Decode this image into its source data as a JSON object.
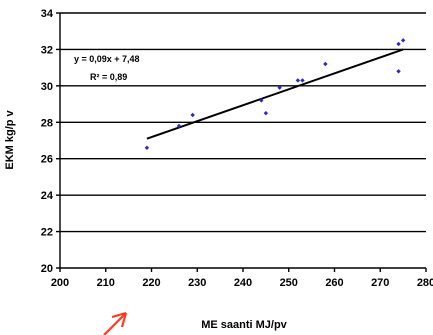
{
  "chart_data": {
    "type": "scatter",
    "xlabel": "ME saanti MJ/pv",
    "ylabel": "EKM kg/p v",
    "xlim": [
      200,
      280
    ],
    "ylim": [
      20,
      34
    ],
    "x_ticks": [
      "200",
      "210",
      "220",
      "230",
      "240",
      "250",
      "260",
      "270",
      "280"
    ],
    "y_ticks": [
      "20",
      "22",
      "24",
      "26",
      "28",
      "30",
      "32",
      "34"
    ],
    "grid": "horizontal",
    "points": [
      {
        "x": 219,
        "y": 26.6
      },
      {
        "x": 226,
        "y": 27.8
      },
      {
        "x": 229,
        "y": 28.4
      },
      {
        "x": 244,
        "y": 29.2
      },
      {
        "x": 245,
        "y": 28.5
      },
      {
        "x": 248,
        "y": 29.9
      },
      {
        "x": 252,
        "y": 30.3
      },
      {
        "x": 253,
        "y": 30.3
      },
      {
        "x": 258,
        "y": 31.2
      },
      {
        "x": 274,
        "y": 30.8
      },
      {
        "x": 274,
        "y": 32.3
      },
      {
        "x": 275,
        "y": 32.5
      }
    ],
    "trendline": {
      "x": [
        219,
        275
      ],
      "y": [
        27.1,
        32.0
      ]
    },
    "equation": "y = 0,09x + 7,48",
    "r_squared": "R² = 0,89",
    "point_color": "#2a2ac0",
    "line_color": "#000000",
    "arrow_color": "#ff3b1f"
  }
}
